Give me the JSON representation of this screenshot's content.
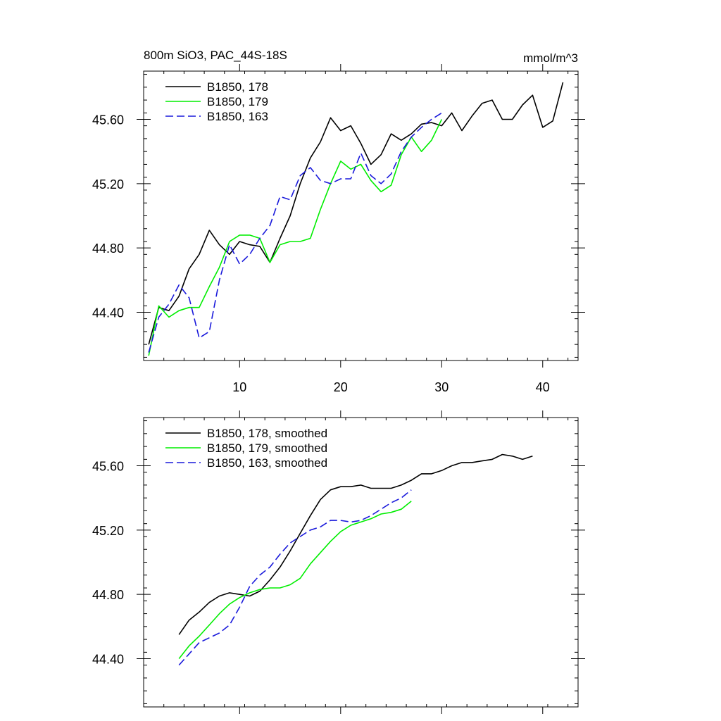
{
  "chart_data": [
    {
      "type": "line",
      "title": "800m SiO3, PAC_44S-18S",
      "units": "mmol/m^3",
      "xlim": [
        0.5,
        43.5
      ],
      "ylim": [
        44.1,
        45.9
      ],
      "xticks": [
        10,
        20,
        30,
        40
      ],
      "xtick_labels": [
        "10",
        "20",
        "30",
        "40"
      ],
      "yticks": [
        44.4,
        44.8,
        45.2,
        45.6
      ],
      "ytick_labels": [
        "44.40",
        "44.80",
        "45.20",
        "45.60"
      ],
      "legend_position": "top-left",
      "series": [
        {
          "name": "B1850, 178",
          "color": "#000000",
          "dash": "solid",
          "x": [
            1,
            2,
            3,
            4,
            5,
            6,
            7,
            8,
            9,
            10,
            11,
            12,
            13,
            14,
            15,
            16,
            17,
            18,
            19,
            20,
            21,
            22,
            23,
            24,
            25,
            26,
            27,
            28,
            29,
            30,
            31,
            32,
            33,
            34,
            35,
            36,
            37,
            38,
            39,
            40,
            41,
            42
          ],
          "y": [
            44.2,
            44.43,
            44.41,
            44.5,
            44.67,
            44.76,
            44.91,
            44.82,
            44.76,
            44.84,
            44.82,
            44.81,
            44.71,
            44.86,
            45.0,
            45.2,
            45.36,
            45.46,
            45.61,
            45.53,
            45.56,
            45.45,
            45.32,
            45.38,
            45.51,
            45.47,
            45.51,
            45.57,
            45.58,
            45.56,
            45.64,
            45.53,
            45.62,
            45.7,
            45.72,
            45.6,
            45.6,
            45.69,
            45.75,
            45.55,
            45.59,
            45.83
          ]
        },
        {
          "name": "B1850, 179",
          "color": "#00ee00",
          "dash": "solid",
          "x": [
            1,
            2,
            3,
            4,
            5,
            6,
            7,
            8,
            9,
            10,
            11,
            12,
            13,
            14,
            15,
            16,
            17,
            18,
            19,
            20,
            21,
            22,
            23,
            24,
            25,
            26,
            27,
            28,
            29,
            30
          ],
          "y": [
            44.13,
            44.44,
            44.37,
            44.41,
            44.43,
            44.43,
            44.56,
            44.68,
            44.84,
            44.88,
            44.88,
            44.86,
            44.71,
            44.82,
            44.84,
            44.84,
            44.86,
            45.04,
            45.2,
            45.34,
            45.29,
            45.32,
            45.22,
            45.15,
            45.19,
            45.38,
            45.49,
            45.4,
            45.47,
            45.6
          ]
        },
        {
          "name": "B1850, 163",
          "color": "#1a1adb",
          "dash": "dashed",
          "x": [
            1,
            2,
            3,
            4,
            5,
            6,
            7,
            8,
            9,
            10,
            11,
            12,
            13,
            14,
            15,
            16,
            17,
            18,
            19,
            20,
            21,
            22,
            23,
            24,
            25,
            26,
            27,
            28,
            29,
            30
          ],
          "y": [
            44.15,
            44.37,
            44.45,
            44.57,
            44.49,
            44.24,
            44.28,
            44.6,
            44.82,
            44.7,
            44.76,
            44.86,
            44.94,
            45.12,
            45.1,
            45.25,
            45.3,
            45.22,
            45.2,
            45.23,
            45.23,
            45.39,
            45.25,
            45.2,
            45.26,
            45.4,
            45.49,
            45.55,
            45.6,
            45.64
          ]
        }
      ]
    },
    {
      "type": "line",
      "xlim": [
        0.5,
        43.5
      ],
      "ylim": [
        44.1,
        45.9
      ],
      "xticks": [
        10,
        20,
        30,
        40
      ],
      "yticks": [
        44.4,
        44.8,
        45.2,
        45.6
      ],
      "ytick_labels": [
        "44.40",
        "44.80",
        "45.20",
        "45.60"
      ],
      "legend_position": "top-left",
      "series": [
        {
          "name": "B1850, 178, smoothed",
          "color": "#000000",
          "dash": "solid",
          "x": [
            4,
            5,
            6,
            7,
            8,
            9,
            10,
            11,
            12,
            13,
            14,
            15,
            16,
            17,
            18,
            19,
            20,
            21,
            22,
            23,
            24,
            25,
            26,
            27,
            28,
            29,
            30,
            31,
            32,
            33,
            34,
            35,
            36,
            37,
            38,
            39
          ],
          "y": [
            44.55,
            44.64,
            44.69,
            44.75,
            44.79,
            44.81,
            44.8,
            44.79,
            44.82,
            44.89,
            44.97,
            45.07,
            45.18,
            45.29,
            45.39,
            45.45,
            45.47,
            45.47,
            45.48,
            45.46,
            45.46,
            45.46,
            45.48,
            45.51,
            45.55,
            45.55,
            45.57,
            45.6,
            45.62,
            45.62,
            45.63,
            45.64,
            45.67,
            45.66,
            45.64,
            45.66
          ]
        },
        {
          "name": "B1850, 179, smoothed",
          "color": "#00ee00",
          "dash": "solid",
          "x": [
            4,
            5,
            6,
            7,
            8,
            9,
            10,
            11,
            12,
            13,
            14,
            15,
            16,
            17,
            18,
            19,
            20,
            21,
            22,
            23,
            24,
            25,
            26,
            27
          ],
          "y": [
            44.4,
            44.48,
            44.54,
            44.61,
            44.68,
            44.74,
            44.78,
            44.81,
            44.83,
            44.84,
            44.84,
            44.86,
            44.9,
            44.99,
            45.06,
            45.13,
            45.19,
            45.23,
            45.25,
            45.27,
            45.3,
            45.31,
            45.33,
            45.38
          ]
        },
        {
          "name": "B1850, 163, smoothed",
          "color": "#1a1adb",
          "dash": "dashed",
          "x": [
            4,
            5,
            6,
            7,
            8,
            9,
            10,
            11,
            12,
            13,
            14,
            15,
            16,
            17,
            18,
            19,
            20,
            21,
            22,
            23,
            24,
            25,
            26,
            27
          ],
          "y": [
            44.36,
            44.43,
            44.5,
            44.53,
            44.56,
            44.61,
            44.72,
            44.85,
            44.92,
            44.97,
            45.05,
            45.12,
            45.16,
            45.2,
            45.22,
            45.26,
            45.26,
            45.25,
            45.26,
            45.29,
            45.33,
            45.37,
            45.4,
            45.45
          ]
        }
      ]
    }
  ]
}
